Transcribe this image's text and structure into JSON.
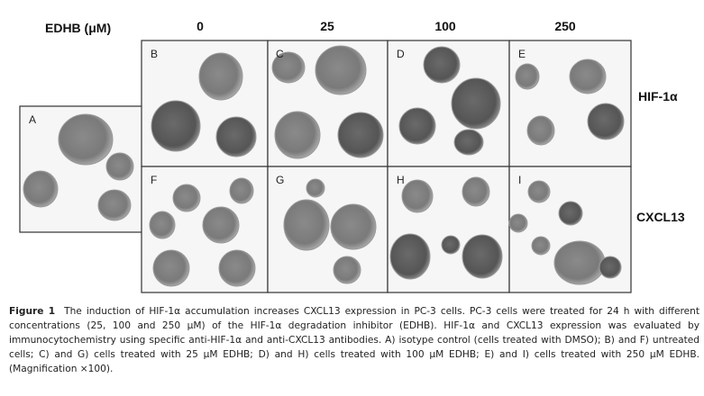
{
  "header": {
    "label": "EDHB (μM)",
    "columns": [
      "0",
      "25",
      "100",
      "250"
    ]
  },
  "rows": [
    "HIF-1α",
    "CXCL13"
  ],
  "panels": [
    "A",
    "B",
    "C",
    "D",
    "E",
    "F",
    "G",
    "H",
    "I"
  ],
  "caption": {
    "label": "Figure 1",
    "text": "The induction of HIF-1α accumulation increases CXCL13 expression in PC-3 cells. PC-3 cells were treated for 24 h with different concentrations (25, 100 and 250 μM) of the HIF-1α degradation inhibitor (EDHB). HIF-1α and CXCL13 expression was evaluated by immunocytochemistry using specific anti-HIF-1α and anti-CXCL13 antibodies. A) isotype control (cells treated with DMSO); B) and F) untreated cells; C) and G) cells treated with 25 μM EDHB; D) and H) cells treated with 100 μM EDHB; E) and I) cells treated with 250 μM EDHB. (Magnification ×100)."
  }
}
